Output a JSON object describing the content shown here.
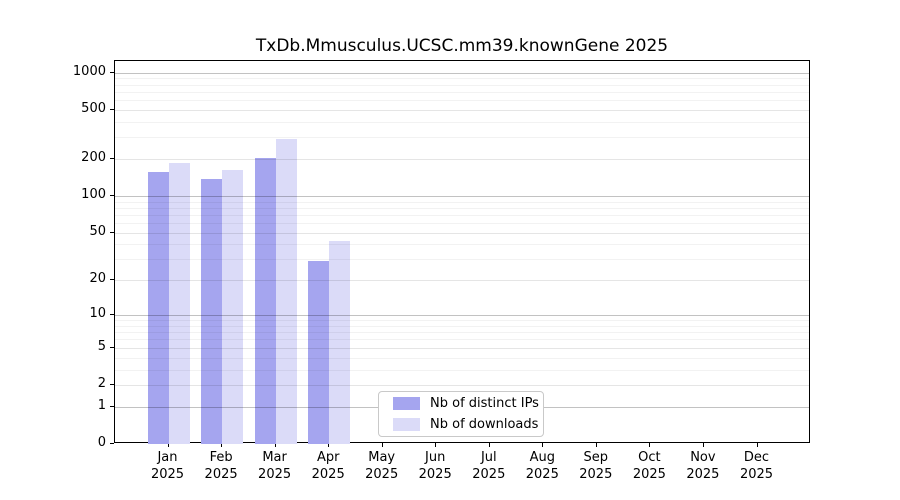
{
  "title": "TxDb.Mmusculus.UCSC.mm39.knownGene 2025",
  "chart_data": {
    "type": "bar",
    "title": "TxDb.Mmusculus.UCSC.mm39.knownGene 2025",
    "categories": [
      "Jan 2025",
      "Feb 2025",
      "Mar 2025",
      "Apr 2025",
      "May 2025",
      "Jun 2025",
      "Jul 2025",
      "Aug 2025",
      "Sep 2025",
      "Oct 2025",
      "Nov 2025",
      "Dec 2025"
    ],
    "series": [
      {
        "name": "Nb of distinct IPs",
        "color": "#a5a5ef",
        "values": [
          158,
          137,
          205,
          29,
          null,
          null,
          null,
          null,
          null,
          null,
          null,
          null
        ]
      },
      {
        "name": "Nb of downloads",
        "color": "#dbdbf8",
        "values": [
          186,
          162,
          291,
          43,
          null,
          null,
          null,
          null,
          null,
          null,
          null,
          null
        ]
      }
    ],
    "xlabel": "",
    "ylabel": "",
    "y_scale": "log10(1+x)",
    "y_ticks": [
      0,
      1,
      2,
      5,
      10,
      20,
      50,
      100,
      200,
      500,
      1000
    ],
    "y_minor_ticks": [
      3,
      4,
      6,
      7,
      8,
      9,
      30,
      40,
      60,
      70,
      80,
      90,
      300,
      400,
      600,
      700,
      800,
      900
    ],
    "ylim": [
      0,
      1240
    ],
    "grid": true,
    "legend_position": "lower center",
    "colors": {
      "grid_decade": "rgba(0,0,0,0.24)",
      "grid_major": "rgba(0,0,0,0.10)",
      "grid_minor": "rgba(0,0,0,0.05)",
      "axis": "#000000",
      "background": "#ffffff"
    }
  }
}
